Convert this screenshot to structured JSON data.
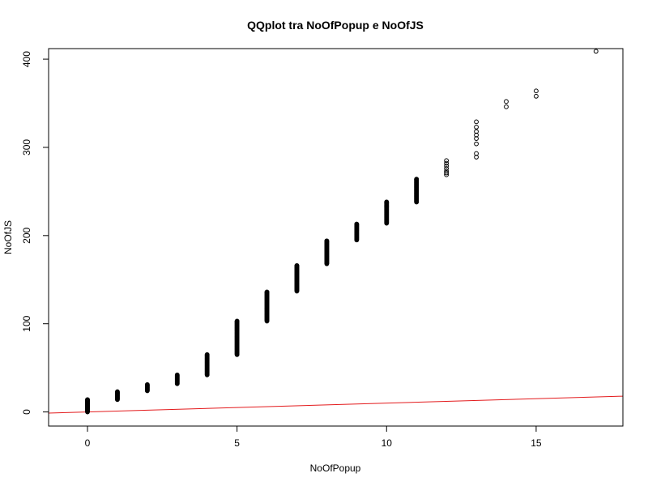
{
  "chart_data": {
    "type": "scatter",
    "title": "QQplot tra NoOfPopup e NoOfJS",
    "xlabel": "NoOfPopup",
    "ylabel": "NoOfJS",
    "xlim": [
      -1.3,
      17.9
    ],
    "ylim": [
      -16,
      412
    ],
    "x_ticks": [
      0,
      5,
      10,
      15
    ],
    "y_ticks": [
      0,
      100,
      200,
      300,
      400
    ],
    "grid": false,
    "legend": "none",
    "columns": [
      {
        "x": 0,
        "y_min": 0,
        "y_max": 14
      },
      {
        "x": 1,
        "y_min": 14,
        "y_max": 23
      },
      {
        "x": 2,
        "y_min": 24,
        "y_max": 31
      },
      {
        "x": 3,
        "y_min": 32,
        "y_max": 42
      },
      {
        "x": 4,
        "y_min": 42,
        "y_max": 65
      },
      {
        "x": 5,
        "y_min": 65,
        "y_max": 103
      },
      {
        "x": 6,
        "y_min": 103,
        "y_max": 136
      },
      {
        "x": 7,
        "y_min": 137,
        "y_max": 166
      },
      {
        "x": 8,
        "y_min": 168,
        "y_max": 194
      },
      {
        "x": 9,
        "y_min": 195,
        "y_max": 213
      },
      {
        "x": 10,
        "y_min": 214,
        "y_max": 238
      },
      {
        "x": 11,
        "y_min": 238,
        "y_max": 264
      }
    ],
    "points": [
      {
        "x": 12,
        "y": 269
      },
      {
        "x": 12,
        "y": 271
      },
      {
        "x": 12,
        "y": 273
      },
      {
        "x": 12,
        "y": 276
      },
      {
        "x": 12,
        "y": 279
      },
      {
        "x": 12,
        "y": 282
      },
      {
        "x": 12,
        "y": 285
      },
      {
        "x": 13,
        "y": 289
      },
      {
        "x": 13,
        "y": 293
      },
      {
        "x": 13,
        "y": 304
      },
      {
        "x": 13,
        "y": 310
      },
      {
        "x": 13,
        "y": 314
      },
      {
        "x": 13,
        "y": 318
      },
      {
        "x": 13,
        "y": 323
      },
      {
        "x": 13,
        "y": 329
      },
      {
        "x": 14,
        "y": 346
      },
      {
        "x": 14,
        "y": 352
      },
      {
        "x": 15,
        "y": 358
      },
      {
        "x": 15,
        "y": 364
      },
      {
        "x": 17,
        "y": 409
      }
    ],
    "reference_line": {
      "intercept": 0,
      "slope": 1,
      "color": "#e31a1c"
    },
    "point_color": "#000000",
    "line_color": "#e31a1c"
  }
}
